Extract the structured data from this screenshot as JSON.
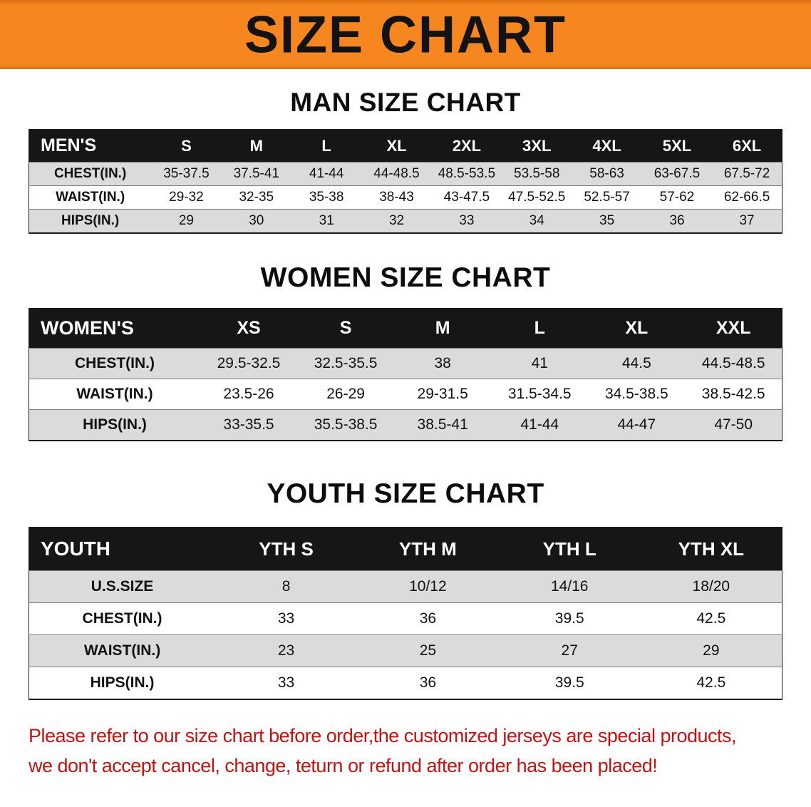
{
  "banner": {
    "title": "SIZE CHART",
    "background_color": "#F6861F",
    "text_color": "#131313"
  },
  "colors": {
    "table_header_black": "#161616",
    "row_stripe_gray": "#DBDBDB",
    "disclaimer_red": "#C31212"
  },
  "sections": [
    {
      "heading": "MAN SIZE CHART",
      "table": {
        "header": [
          "MEN'S",
          "S",
          "M",
          "L",
          "XL",
          "2XL",
          "3XL",
          "4XL",
          "5XL",
          "6XL"
        ],
        "rows": [
          [
            "CHEST(IN.)",
            "35-37.5",
            "37.5-41",
            "41-44",
            "44-48.5",
            "48.5-53.5",
            "53.5-58",
            "58-63",
            "63-67.5",
            "67.5-72"
          ],
          [
            "WAIST(IN.)",
            "29-32",
            "32-35",
            "35-38",
            "38-43",
            "43-47.5",
            "47.5-52.5",
            "52.5-57",
            "57-62",
            "62-66.5"
          ],
          [
            "HIPS(IN.)",
            "29",
            "30",
            "31",
            "32",
            "33",
            "34",
            "35",
            "36",
            "37"
          ]
        ]
      }
    },
    {
      "heading": "WOMEN SIZE CHART",
      "table": {
        "header": [
          "WOMEN'S",
          "XS",
          "S",
          "M",
          "L",
          "XL",
          "XXL"
        ],
        "rows": [
          [
            "CHEST(IN.)",
            "29.5-32.5",
            "32.5-35.5",
            "38",
            "41",
            "44.5",
            "44.5-48.5"
          ],
          [
            "WAIST(IN.)",
            "23.5-26",
            "26-29",
            "29-31.5",
            "31.5-34.5",
            "34.5-38.5",
            "38.5-42.5"
          ],
          [
            "HIPS(IN.)",
            "33-35.5",
            "35.5-38.5",
            "38.5-41",
            "41-44",
            "44-47",
            "47-50"
          ]
        ]
      }
    },
    {
      "heading": "YOUTH SIZE CHART",
      "table": {
        "header": [
          "YOUTH",
          "YTH S",
          "YTH M",
          "YTH L",
          "YTH XL"
        ],
        "rows": [
          [
            "U.S.SIZE",
            "8",
            "10/12",
            "14/16",
            "18/20"
          ],
          [
            "CHEST(IN.)",
            "33",
            "36",
            "39.5",
            "42.5"
          ],
          [
            "WAIST(IN.)",
            "23",
            "25",
            "27",
            "29"
          ],
          [
            "HIPS(IN.)",
            "33",
            "36",
            "39.5",
            "42.5"
          ]
        ]
      }
    }
  ],
  "footer": {
    "line1": "Please refer to our size chart before order,the customized jerseys are special products,",
    "line2": "we don't accept cancel, change, teturn or refund after order has been placed!"
  }
}
